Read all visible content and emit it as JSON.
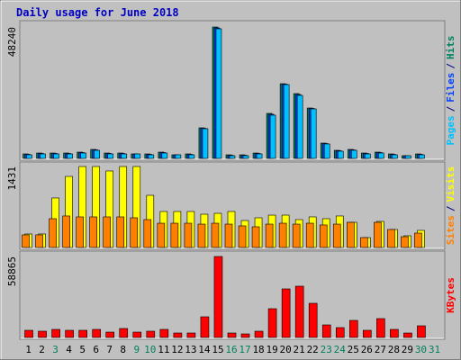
{
  "chart_data": {
    "type": "bar",
    "title": "Daily usage for June 2018",
    "categories": [
      "1",
      "2",
      "3",
      "4",
      "5",
      "6",
      "7",
      "8",
      "9",
      "10",
      "11",
      "12",
      "13",
      "14",
      "15",
      "16",
      "17",
      "18",
      "19",
      "20",
      "21",
      "22",
      "23",
      "24",
      "25",
      "26",
      "27",
      "28",
      "29",
      "30",
      "31"
    ],
    "category_colors": [
      "#000000",
      "#000000",
      "#00805c",
      "#000000",
      "#000000",
      "#000000",
      "#000000",
      "#000000",
      "#00805c",
      "#00805c",
      "#000000",
      "#000000",
      "#000000",
      "#000000",
      "#000000",
      "#00805c",
      "#00805c",
      "#000000",
      "#000000",
      "#000000",
      "#000000",
      "#000000",
      "#00805c",
      "#00805c",
      "#000000",
      "#000000",
      "#000000",
      "#000000",
      "#000000",
      "#00805c",
      "#00805c"
    ],
    "legend_separator": "/",
    "panels": [
      {
        "ylim": [
          0,
          48240
        ],
        "yticks": [
          48240
        ],
        "series": [
          {
            "name": "Hits",
            "color": "#00805c",
            "values": [
              1652,
              1982,
              1982,
              1982,
              2313,
              3304,
              1982,
              1982,
              1652,
              1652,
              2313,
              1322,
              1652,
              11234,
              48240,
              1322,
              1322,
              1982,
              16521,
              27424,
              23790,
              18503,
              5617,
              2974,
              3304,
              1982,
              2313,
              1652,
              991,
              1652,
              0
            ]
          },
          {
            "name": "Files",
            "color": "#0040ff",
            "values": [
              1487,
              1817,
              1817,
              1817,
              2148,
              3139,
              1817,
              1817,
              1652,
              1487,
              2148,
              1322,
              1487,
              11069,
              47910,
              1157,
              1157,
              1817,
              16190,
              27259,
              23460,
              18338,
              5452,
              2809,
              3139,
              1817,
              2148,
              1487,
              991,
              1487,
              0
            ]
          },
          {
            "name": "Pages",
            "color": "#00c0ff",
            "values": [
              1322,
              1652,
              1652,
              1652,
              1982,
              2974,
              1652,
              1652,
              1652,
              1322,
              1982,
              1322,
              1322,
              10904,
              47579,
              991,
              991,
              1652,
              15860,
              27094,
              23129,
              18173,
              5287,
              2643,
              2974,
              1652,
              1982,
              1322,
              991,
              1322,
              0
            ]
          }
        ]
      },
      {
        "ylim": [
          0,
          1431
        ],
        "yticks": [
          1431
        ],
        "series": [
          {
            "name": "Visits",
            "color": "#ffff00",
            "values": [
              239,
              239,
              875,
              1256,
              1431,
              1431,
              1352,
              1431,
              1431,
              922,
              636,
              636,
              636,
              588,
              604,
              636,
              477,
              525,
              572,
              572,
              493,
              541,
              509,
              557,
              445,
              175,
              461,
              318,
              207,
              302,
              0
            ]
          },
          {
            "name": "Sites",
            "color": "#ff8000",
            "values": [
              223,
              223,
              509,
              557,
              541,
              541,
              541,
              541,
              525,
              493,
              429,
              429,
              429,
              413,
              429,
              413,
              382,
              366,
              413,
              429,
              413,
              429,
              398,
              413,
              445,
              175,
              445,
              318,
              191,
              254,
              0
            ]
          }
        ]
      },
      {
        "ylim": [
          0,
          58865
        ],
        "yticks": [
          58865
        ],
        "series": [
          {
            "name": "KBytes",
            "color": "#ff0000",
            "values": [
              5233,
              4579,
              5887,
              5233,
              5233,
              5887,
              3925,
              6541,
              3925,
              4579,
              5887,
              3270,
              3270,
              15044,
              58865,
              3270,
              2616,
              4579,
              20931,
              35321,
              37284,
              24855,
              9157,
              7195,
              12428,
              5233,
              13736,
              5887,
              3270,
              8503,
              0
            ]
          }
        ]
      }
    ]
  }
}
